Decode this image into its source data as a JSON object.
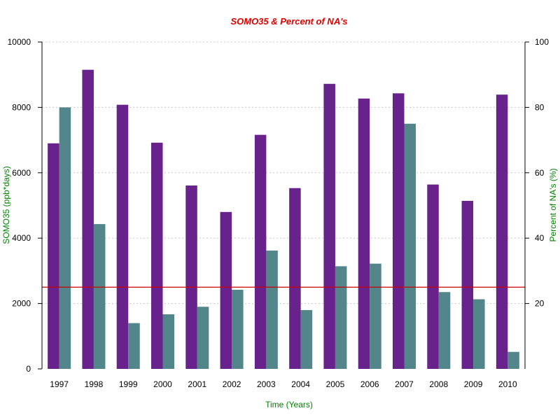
{
  "chart_data": {
    "type": "bar",
    "title": "SOMO35 & Percent of NA's",
    "xlabel": "Time (Years)",
    "ylabel": "SOMO35 (ppb*days)",
    "y2label": "Percent of NA's (%)",
    "categories": [
      "1997",
      "1998",
      "1999",
      "2000",
      "2001",
      "2002",
      "2003",
      "2004",
      "2005",
      "2006",
      "2007",
      "2008",
      "2009",
      "2010"
    ],
    "series": [
      {
        "axis": "left",
        "color": "#68228b",
        "values": [
          6900,
          9150,
          8080,
          6920,
          5610,
          4800,
          7160,
          5530,
          8720,
          8270,
          8430,
          5640,
          5140,
          8390
        ]
      },
      {
        "axis": "right",
        "color": "#52868b",
        "values": [
          80,
          44.3,
          14,
          16.7,
          19,
          24.2,
          36.2,
          18,
          31.4,
          32.2,
          75,
          23.5,
          21.3,
          5.2
        ]
      }
    ],
    "ylim": [
      0,
      10000
    ],
    "yticks": [
      "0",
      "2000",
      "4000",
      "6000",
      "8000",
      "10000"
    ],
    "y2lim": [
      0,
      100
    ],
    "y2ticks": [
      "20",
      "40",
      "60",
      "80",
      "100"
    ],
    "reference_line": {
      "axis": "right",
      "value": 25,
      "color": "#cc0000"
    },
    "grid": "horizontal-dotted",
    "colors": {
      "title": "#e00000",
      "axis_titles": "#008000",
      "grid": "#c8c8c8"
    }
  }
}
